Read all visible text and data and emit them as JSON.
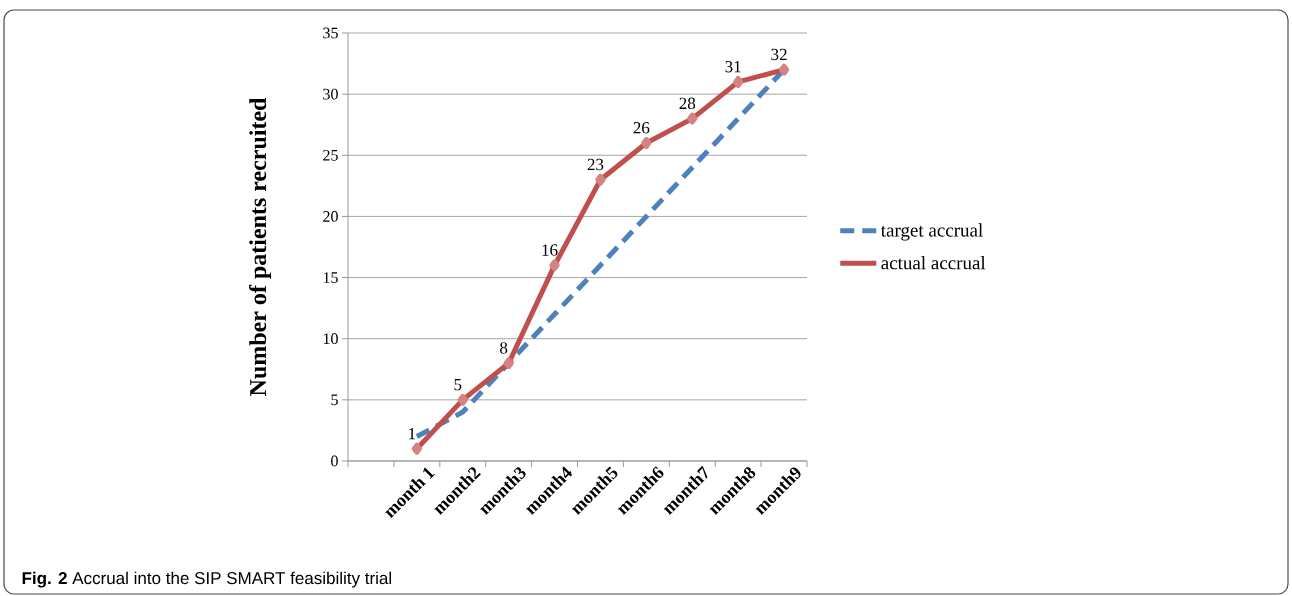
{
  "chart_data": {
    "type": "line",
    "ylabel": "Number of patients recruited",
    "categories": [
      null,
      "month 1",
      "month2",
      "month3",
      "month4",
      "month5",
      "month6",
      "month7",
      "month8",
      "month9"
    ],
    "series": [
      {
        "name": "target accrual",
        "color": "#4f81bd",
        "line_style": "dashed",
        "marker": "none",
        "values": [
          null,
          2,
          4,
          8,
          12,
          16,
          20,
          24,
          28,
          32
        ]
      },
      {
        "name": "actual accrual",
        "color": "#c0504d",
        "line_style": "solid",
        "marker": "diamond",
        "values": [
          null,
          1,
          5,
          8,
          16,
          23,
          26,
          28,
          31,
          32
        ],
        "value_labels": [
          null,
          "1",
          "5",
          "8",
          "16",
          "23",
          "26",
          "28",
          "31",
          "32"
        ]
      }
    ],
    "ylim": [
      0,
      35
    ],
    "yticks": [
      0,
      5,
      10,
      15,
      20,
      25,
      30,
      35
    ],
    "grid": "y",
    "legend": "right",
    "annotations": [
      "**Fig. 2** Accrual into the SIP SMART feasibility trial"
    ]
  }
}
